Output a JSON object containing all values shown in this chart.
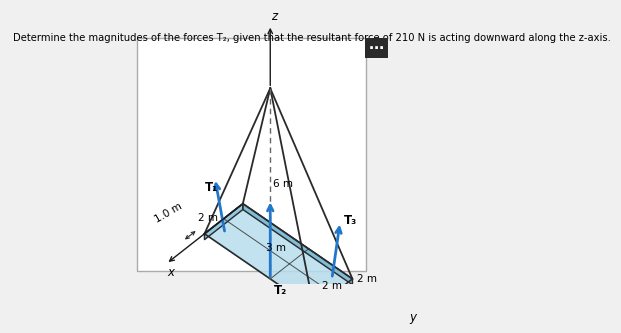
{
  "title": "Determine the magnitudes of the forces T₂, given that the resultant force of 210 N is acting downward along the z-axis.",
  "bg_color": "#f0f0f0",
  "fig_width": 5.52,
  "fig_height": 3.11,
  "plate_fill": "#b8dded",
  "plate_edge": "#2a2a2a",
  "plate_thick_front": "#7ab8d4",
  "plate_thick_side": "#8ec8e0",
  "axis_color": "#1a1a1a",
  "force_color": "#2277cc",
  "label_T1": "T₁",
  "label_T2": "T₂",
  "label_T3": "T₃",
  "z_label": "z",
  "x_label": "x",
  "y_label": "y",
  "dim_6m": "6 m",
  "dim_1m": "1.0 m",
  "dim_2m_x": "2 m",
  "dim_3m": "3 m",
  "dim_2m_y1": "2 m",
  "dim_2m_y2": "2 m",
  "dashed_color": "#666666",
  "dots_bg": "#2a2a2a"
}
